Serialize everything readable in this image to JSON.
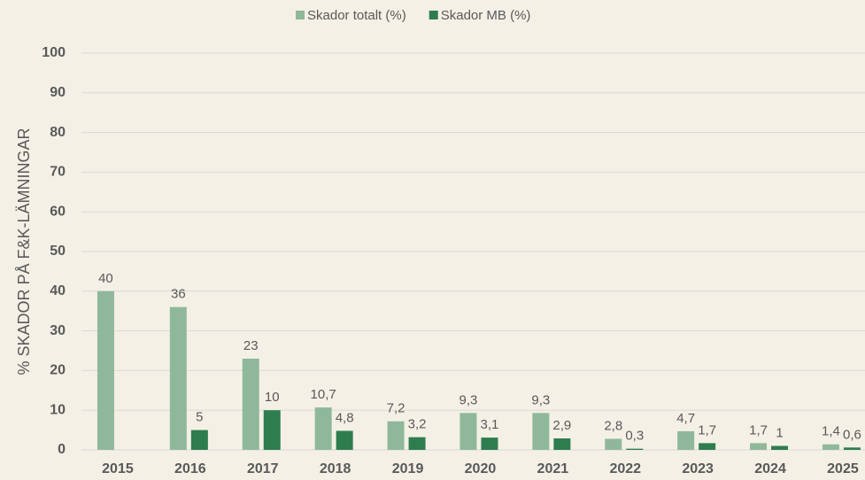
{
  "chart_data": {
    "type": "bar",
    "y_label": "% SKADOR PÅ F&K-LÄMNINGAR",
    "categories": [
      "2015",
      "2016",
      "2017",
      "2018",
      "2019",
      "2020",
      "2021",
      "2022",
      "2023",
      "2024",
      "2025"
    ],
    "series": [
      {
        "name": "Skador totalt (%)",
        "color": "#8fb89a",
        "values": [
          40,
          36,
          23,
          10.7,
          7.2,
          9.3,
          9.3,
          2.8,
          4.7,
          1.7,
          1.4
        ],
        "value_labels": [
          "40",
          "36",
          "23",
          "10,7",
          "7,2",
          "9,3",
          "9,3",
          "2,8",
          "4,7",
          "1,7",
          "1,4"
        ]
      },
      {
        "name": "Skador MB (%)",
        "color": "#2e7d4f",
        "values": [
          null,
          5,
          10,
          4.8,
          3.2,
          3.1,
          2.9,
          0.3,
          1.7,
          1,
          0.6
        ],
        "value_labels": [
          null,
          "5",
          "10",
          "4,8",
          "3,2",
          "3,1",
          "2,9",
          "0,3",
          "1,7",
          "1",
          "0,6"
        ]
      }
    ],
    "ylim": [
      0,
      100
    ],
    "yticks": [
      0,
      10,
      20,
      30,
      40,
      50,
      60,
      70,
      80,
      90,
      100
    ],
    "grid": true,
    "legend": "top"
  }
}
